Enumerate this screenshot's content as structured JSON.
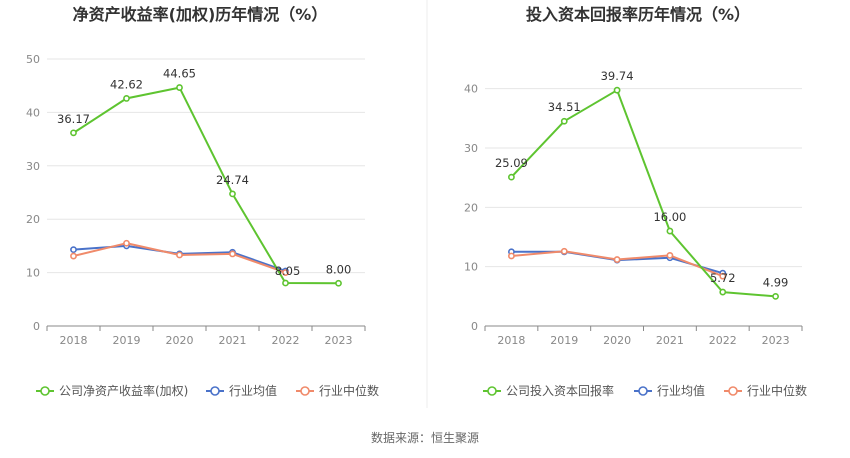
{
  "footer": {
    "source": "数据来源：恒生聚源"
  },
  "chart_data": [
    {
      "type": "line",
      "title": "净资产收益率(加权)历年情况（%）",
      "categories": [
        "2018",
        "2019",
        "2020",
        "2021",
        "2022",
        "2023"
      ],
      "ylim": [
        0,
        50
      ],
      "yticks": [
        0,
        10,
        20,
        30,
        40,
        50
      ],
      "grid": true,
      "legend_position": "bottom",
      "series": [
        {
          "name": "公司净资产收益率(加权)",
          "color": "#5ec430",
          "values": [
            36.17,
            42.62,
            44.65,
            24.74,
            8.05,
            8.0
          ],
          "labels": [
            "36.17",
            "42.62",
            "44.65",
            "24.74",
            "8.05",
            "8.00"
          ]
        },
        {
          "name": "行业均值",
          "color": "#4a72c9",
          "values": [
            14.3,
            15.0,
            13.5,
            13.8,
            10.3,
            null
          ]
        },
        {
          "name": "行业中位数",
          "color": "#f08a6a",
          "values": [
            13.1,
            15.5,
            13.3,
            13.5,
            10.0,
            null
          ]
        }
      ]
    },
    {
      "type": "line",
      "title": "投入资本回报率历年情况（%）",
      "categories": [
        "2018",
        "2019",
        "2020",
        "2021",
        "2022",
        "2023"
      ],
      "ylim": [
        0,
        45
      ],
      "yticks": [
        0,
        10,
        20,
        30,
        40
      ],
      "grid": true,
      "legend_position": "bottom",
      "series": [
        {
          "name": "公司投入资本回报率",
          "color": "#5ec430",
          "values": [
            25.09,
            34.51,
            39.74,
            16.0,
            5.72,
            4.99
          ],
          "labels": [
            "25.09",
            "34.51",
            "39.74",
            "16.00",
            "5.72",
            "4.99"
          ]
        },
        {
          "name": "行业均值",
          "color": "#4a72c9",
          "values": [
            12.5,
            12.5,
            11.1,
            11.5,
            8.9,
            null
          ]
        },
        {
          "name": "行业中位数",
          "color": "#f08a6a",
          "values": [
            11.8,
            12.6,
            11.2,
            11.9,
            8.4,
            null
          ]
        }
      ]
    }
  ]
}
